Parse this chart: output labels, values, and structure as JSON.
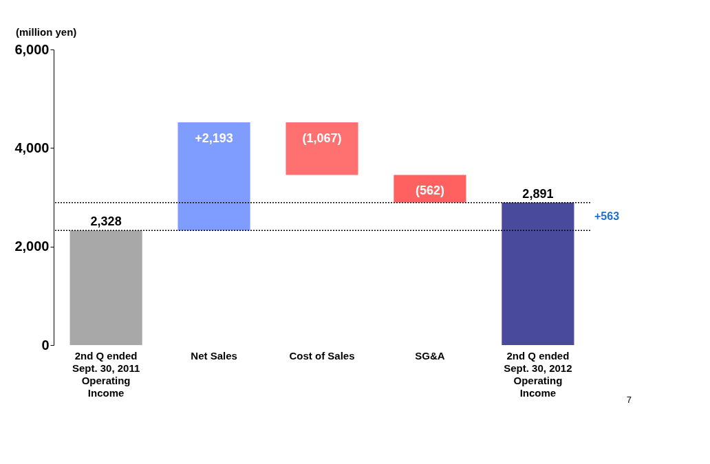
{
  "chart_data": {
    "type": "bar",
    "categories": [
      "2nd Q ended\nSept. 30, 2011\nOperating\nIncome",
      "Net Sales",
      "Cost of Sales",
      "SG&A",
      "2nd Q ended\nSept. 30, 2012\nOperating\nIncome"
    ],
    "values": [
      2328,
      2193,
      -1067,
      -562,
      2891
    ],
    "base": [
      0,
      2328,
      4521,
      3454,
      0
    ],
    "colors": [
      "#a8a8a8",
      "#7f9cff",
      "#ff7070",
      "#ff6060",
      "#4a4a9c"
    ],
    "value_labels": [
      "2,328",
      "+2,193",
      "(1,067)",
      "(562)",
      "2,891"
    ],
    "ylim": [
      0,
      6000
    ],
    "yticks": [
      {
        "value": 0,
        "label": "0"
      },
      {
        "value": 2000,
        "label": "2,000"
      },
      {
        "value": 4000,
        "label": "4,000"
      },
      {
        "value": 6000,
        "label": "6,000"
      }
    ],
    "grid": false,
    "ref_lines": [
      {
        "axis": "y",
        "value": 2328,
        "color": "#000000",
        "line_style": "dotted"
      },
      {
        "axis": "y",
        "value": 2891,
        "color": "#000000",
        "line_style": "dotted"
      }
    ],
    "annotations": [
      "(million yen)",
      "+563",
      "7"
    ]
  }
}
